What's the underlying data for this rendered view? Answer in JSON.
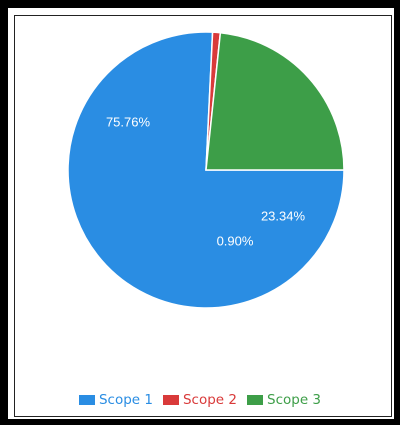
{
  "chart_data": {
    "type": "pie",
    "start_angle_deg": 90,
    "direction": "clockwise",
    "slices": [
      {
        "label": "Scope 1",
        "value": 75.76,
        "display": "75.76%",
        "color": "#2a8de3"
      },
      {
        "label": "Scope 2",
        "value": 0.9,
        "display": "0.90%",
        "color": "#d93a3a"
      },
      {
        "label": "Scope 3",
        "value": 23.34,
        "display": "23.34%",
        "color": "#3d9e48"
      }
    ],
    "legend": {
      "position": "bottom-center",
      "entries": [
        "Scope 1",
        "Scope 2",
        "Scope 3"
      ]
    }
  }
}
